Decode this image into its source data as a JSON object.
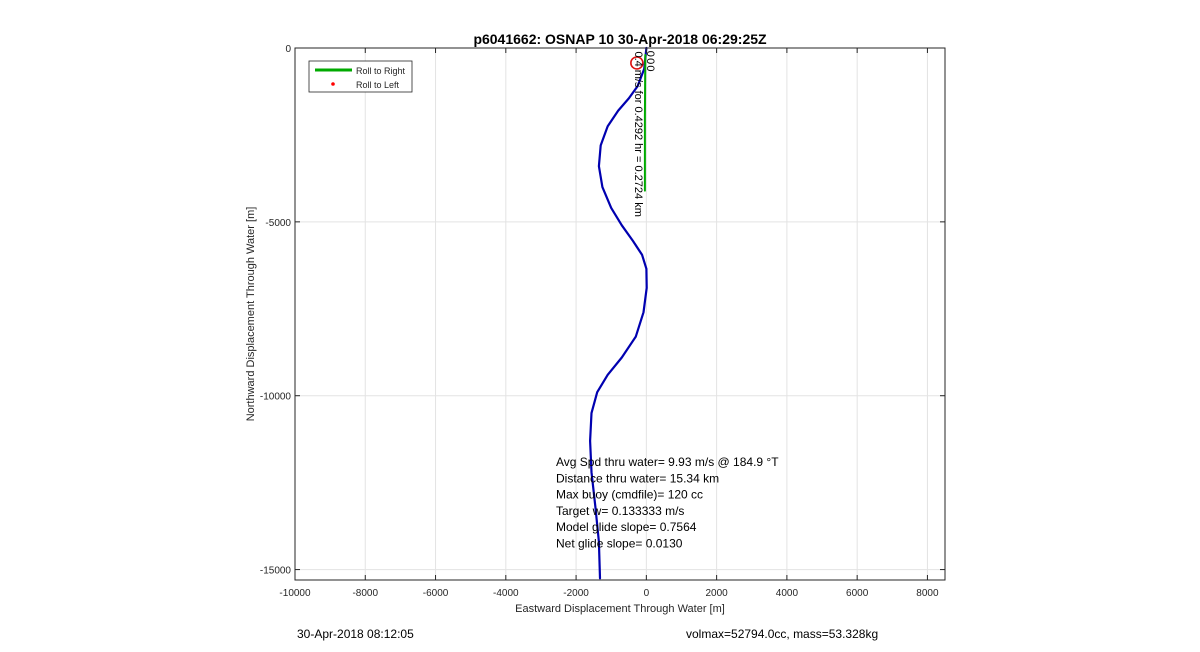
{
  "figure": {
    "footer_left": "30-Apr-2018 08:12:05",
    "footer_right": "volmax=52794.0cc, mass=53.328kg"
  },
  "chart_data": {
    "type": "line",
    "title": "p6041662: OSNAP 10 30-Apr-2018 06:29:25Z",
    "xlabel": "Eastward Displacement Through Water [m]",
    "ylabel": "Northward Displacement Through Water [m]",
    "xlim": [
      -10000,
      8500
    ],
    "ylim": [
      -15300,
      0
    ],
    "xticks": [
      -10000,
      -8000,
      -6000,
      -4000,
      -2000,
      0,
      2000,
      4000,
      6000,
      8000
    ],
    "yticks": [
      0,
      -5000,
      -10000,
      -15000
    ],
    "grid": true,
    "legend": {
      "placement": "top-left",
      "entries": [
        {
          "label": "Roll to Right",
          "color": "#00aa00",
          "marker": "line"
        },
        {
          "label": "Roll to Left",
          "color": "#ff0000",
          "marker": "dot"
        }
      ]
    },
    "series": [
      {
        "color": "#0000b0",
        "x": [
          0,
          -60,
          -250,
          -500,
          -800,
          -1100,
          -1300,
          -1350,
          -1250,
          -1000,
          -700,
          -380,
          -120,
          0,
          10,
          -80,
          -300,
          -700,
          -1100,
          -1400,
          -1560,
          -1600,
          -1560,
          -1450,
          -1350,
          -1320
        ],
        "y": [
          0,
          -600,
          -1100,
          -1450,
          -1800,
          -2250,
          -2800,
          -3400,
          -4000,
          -4600,
          -5100,
          -5550,
          -5950,
          -6350,
          -6900,
          -7600,
          -8300,
          -8900,
          -9400,
          -9900,
          -10500,
          -11300,
          -12200,
          -13200,
          -14200,
          -15250
        ]
      },
      {
        "color": "#00aa00",
        "x": [
          -30,
          -40,
          -40
        ],
        "y": [
          -200,
          -2000,
          -4100
        ]
      }
    ],
    "marker": {
      "x": -270,
      "y": -430,
      "color": "#dd1111"
    },
    "annotations": [
      {
        "text": "0.4 m/s for 0.4292 hr = 0.2724 km",
        "x": -320,
        "y": -100,
        "rotation": 90
      },
      {
        "text": "0",
        "x": 20,
        "y": -80,
        "rotation": 90
      },
      {
        "text": "0",
        "x": 20,
        "y": -290,
        "rotation": 90
      },
      {
        "text": "0",
        "x": 20,
        "y": -500,
        "rotation": 90
      }
    ],
    "stats": [
      "Avg Spd thru water=  9.93 m/s @ 184.9 °T",
      "Distance thru water= 15.34 km",
      "Max buoy (cmdfile)= 120 cc",
      "Target w= 0.133333 m/s",
      "Model glide slope= 0.7564",
      "Net glide slope= 0.0130"
    ]
  }
}
